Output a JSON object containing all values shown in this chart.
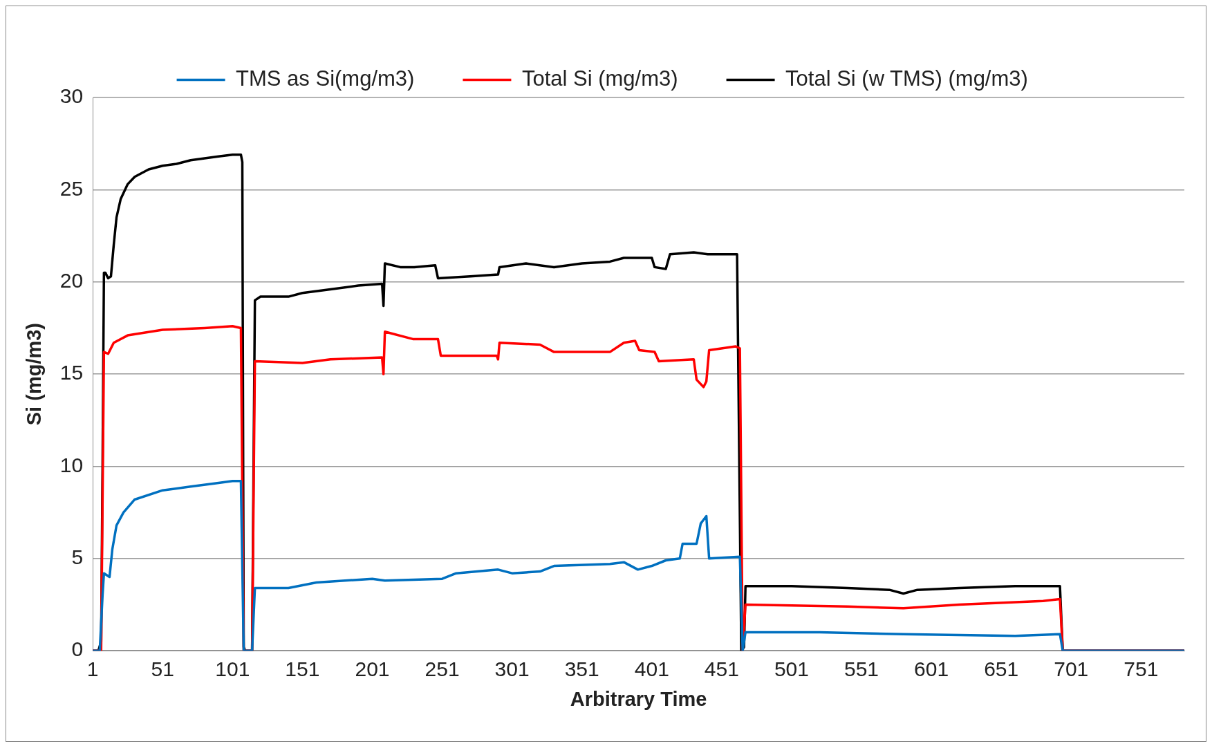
{
  "chart_data": {
    "type": "line",
    "xlabel": "Arbitrary Time",
    "ylabel": "Si (mg/m3)",
    "xlim": [
      1,
      782
    ],
    "xticks": [
      1,
      51,
      101,
      151,
      201,
      251,
      301,
      351,
      401,
      451,
      501,
      551,
      601,
      651,
      701,
      751
    ],
    "ylim": [
      0,
      30
    ],
    "yticks": [
      0,
      5,
      10,
      15,
      20,
      25,
      30
    ],
    "grid": "y",
    "legend": "top",
    "marker": "none",
    "line_style": "solid",
    "series": [
      {
        "name": "TMS as Si(mg/m3)",
        "color": "#0070c0",
        "x": [
          1,
          6,
          8,
          9,
          13,
          15,
          18,
          23,
          31,
          51,
          71,
          91,
          101,
          107,
          109,
          115,
          117,
          141,
          161,
          201,
          210,
          251,
          261,
          291,
          301,
          321,
          331,
          371,
          381,
          391,
          401,
          411,
          421,
          423,
          433,
          436,
          440,
          442,
          464,
          466,
          468,
          521,
          581,
          661,
          693,
          695,
          782
        ],
        "values": [
          0,
          0,
          3,
          4.2,
          4.0,
          5.5,
          6.8,
          7.5,
          8.2,
          8.7,
          8.9,
          9.1,
          9.2,
          9.2,
          0,
          0,
          3.4,
          3.4,
          3.7,
          3.9,
          3.8,
          3.9,
          4.2,
          4.4,
          4.2,
          4.3,
          4.6,
          4.7,
          4.8,
          4.4,
          4.6,
          4.9,
          5.0,
          5.8,
          5.8,
          6.9,
          7.3,
          5.0,
          5.1,
          0,
          1.0,
          1.0,
          0.9,
          0.8,
          0.9,
          0,
          0
        ]
      },
      {
        "name": "Total Si (mg/m3)",
        "color": "#ff0000",
        "x": [
          1,
          7,
          9,
          12,
          16,
          26,
          51,
          81,
          101,
          107,
          109,
          115,
          117,
          151,
          171,
          208,
          209,
          210,
          230,
          248,
          250,
          290,
          291,
          292,
          321,
          331,
          371,
          381,
          389,
          392,
          403,
          406,
          431,
          433,
          438,
          440,
          442,
          461,
          464,
          466,
          468,
          541,
          581,
          621,
          681,
          693,
          695,
          782
        ],
        "values": [
          0,
          0,
          16.2,
          16.1,
          16.7,
          17.1,
          17.4,
          17.5,
          17.6,
          17.5,
          0,
          0,
          15.7,
          15.6,
          15.8,
          15.9,
          15.0,
          17.3,
          16.9,
          16.9,
          16.0,
          16.0,
          15.8,
          16.7,
          16.6,
          16.2,
          16.2,
          16.7,
          16.8,
          16.3,
          16.2,
          15.7,
          15.8,
          14.7,
          14.3,
          14.6,
          16.3,
          16.5,
          16.4,
          0,
          2.5,
          2.4,
          2.3,
          2.5,
          2.7,
          2.8,
          0,
          0
        ]
      },
      {
        "name": "Total Si (w TMS) (mg/m3)",
        "color": "#000000",
        "x": [
          1,
          5,
          7,
          8,
          9,
          10,
          12,
          14,
          16,
          18,
          21,
          26,
          31,
          41,
          51,
          61,
          71,
          81,
          91,
          101,
          107,
          108,
          109,
          110,
          115,
          117,
          121,
          141,
          151,
          171,
          191,
          208,
          209,
          210,
          221,
          231,
          246,
          248,
          271,
          291,
          292,
          311,
          331,
          351,
          371,
          381,
          401,
          403,
          411,
          414,
          431,
          441,
          461,
          462,
          465,
          467,
          468,
          501,
          541,
          571,
          581,
          591,
          621,
          661,
          693,
          695,
          782
        ],
        "values": [
          0,
          0,
          0.5,
          10,
          20.5,
          20.5,
          20.2,
          20.3,
          22,
          23.5,
          24.5,
          25.3,
          25.7,
          26.1,
          26.3,
          26.4,
          26.6,
          26.7,
          26.8,
          26.9,
          26.9,
          26.5,
          0.2,
          0,
          0,
          19,
          19.2,
          19.2,
          19.4,
          19.6,
          19.8,
          19.9,
          18.7,
          21,
          20.8,
          20.8,
          20.9,
          20.2,
          20.3,
          20.4,
          20.8,
          21.0,
          20.8,
          21.0,
          21.1,
          21.3,
          21.3,
          20.8,
          20.7,
          21.5,
          21.6,
          21.5,
          21.5,
          21.5,
          0,
          0.2,
          3.5,
          3.5,
          3.4,
          3.3,
          3.1,
          3.3,
          3.4,
          3.5,
          3.5,
          0,
          0
        ]
      }
    ]
  }
}
